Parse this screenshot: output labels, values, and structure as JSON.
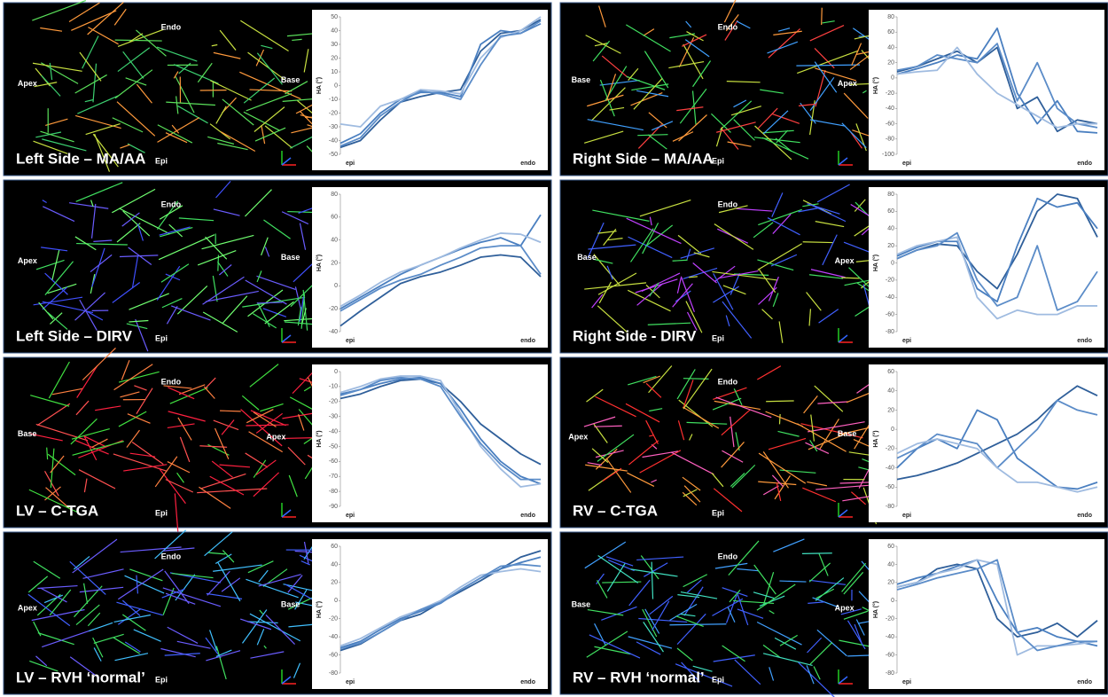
{
  "chart_data": [
    {
      "type": "line",
      "title": "Left Side – MA/AA",
      "image_labels": {
        "endo": "Endo",
        "apex": "Apex",
        "base": "Base",
        "epi": "Epi"
      },
      "ylabel": "HA (°)",
      "categories": [
        "epi",
        null,
        null,
        null,
        null,
        null,
        null,
        null,
        null,
        null,
        "endo"
      ],
      "ylim": [
        -50,
        50
      ],
      "yticks": [
        -50,
        -40,
        -30,
        -20,
        -10,
        0,
        10,
        20,
        30,
        40,
        50
      ],
      "series": [
        {
          "color": "#2f5f9a",
          "values": [
            -45,
            -40,
            -25,
            -12,
            -8,
            -5,
            -3,
            25,
            38,
            40,
            48
          ]
        },
        {
          "color": "#4a7fc0",
          "values": [
            -42,
            -35,
            -20,
            -10,
            -5,
            -5,
            -8,
            30,
            40,
            38,
            45
          ]
        },
        {
          "color": "#9fbbe0",
          "values": [
            -28,
            -30,
            -15,
            -10,
            -3,
            -4,
            -6,
            20,
            35,
            40,
            50
          ]
        },
        {
          "color": "#5b8cc8",
          "values": [
            -44,
            -38,
            -22,
            -12,
            -4,
            -6,
            -10,
            15,
            36,
            38,
            47
          ]
        }
      ]
    },
    {
      "type": "line",
      "title": "Right Side – MA/AA",
      "image_labels": {
        "endo": "Endo",
        "apex": "Apex",
        "base": "Base",
        "epi": "Epi"
      },
      "ylabel": "HA (°)",
      "categories": [
        "epi",
        null,
        null,
        null,
        null,
        null,
        null,
        null,
        null,
        null,
        "endo"
      ],
      "ylim": [
        -100,
        80
      ],
      "yticks": [
        -100,
        -80,
        -60,
        -40,
        -20,
        0,
        20,
        40,
        60,
        80
      ],
      "series": [
        {
          "color": "#2f5f9a",
          "values": [
            8,
            15,
            25,
            35,
            20,
            40,
            -40,
            -25,
            -70,
            -55,
            -60
          ]
        },
        {
          "color": "#4a7fc0",
          "values": [
            5,
            12,
            20,
            30,
            25,
            65,
            -20,
            -60,
            -30,
            -70,
            -72
          ]
        },
        {
          "color": "#5b8cc8",
          "values": [
            10,
            15,
            30,
            25,
            20,
            45,
            -30,
            20,
            -40,
            -60,
            -65
          ]
        },
        {
          "color": "#9fbbe0",
          "values": [
            5,
            8,
            10,
            40,
            5,
            -20,
            -35,
            -50,
            -65,
            -60,
            -60
          ]
        }
      ]
    },
    {
      "type": "line",
      "title": "Left Side – DIRV",
      "image_labels": {
        "endo": "Endo",
        "apex": "Apex",
        "base": "Base",
        "epi": "Epi"
      },
      "ylabel": "HA (°)",
      "categories": [
        "epi",
        null,
        null,
        null,
        null,
        null,
        null,
        null,
        null,
        null,
        "endo"
      ],
      "ylim": [
        -40,
        80
      ],
      "yticks": [
        -40,
        -20,
        0,
        20,
        40,
        60,
        80
      ],
      "series": [
        {
          "color": "#2f5f9a",
          "values": [
            -35,
            -22,
            -10,
            2,
            8,
            12,
            18,
            25,
            27,
            25,
            8
          ]
        },
        {
          "color": "#4a7fc0",
          "values": [
            -20,
            -10,
            0,
            10,
            18,
            25,
            32,
            38,
            42,
            35,
            62
          ]
        },
        {
          "color": "#9fbbe0",
          "values": [
            -18,
            -8,
            3,
            12,
            18,
            25,
            33,
            40,
            46,
            45,
            38
          ]
        },
        {
          "color": "#5b8cc8",
          "values": [
            -22,
            -12,
            -2,
            5,
            10,
            18,
            25,
            33,
            35,
            35,
            10
          ]
        }
      ]
    },
    {
      "type": "line",
      "title": "Right Side - DIRV",
      "image_labels": {
        "endo": "Endo",
        "apex": "Apex",
        "base": "Base",
        "epi": "Epi"
      },
      "ylabel": "HA (°)",
      "categories": [
        "epi",
        null,
        null,
        null,
        null,
        null,
        null,
        null,
        null,
        null,
        "endo"
      ],
      "ylim": [
        -80,
        80
      ],
      "yticks": [
        -80,
        -60,
        -40,
        -20,
        0,
        20,
        40,
        60,
        80
      ],
      "series": [
        {
          "color": "#2f5f9a",
          "values": [
            5,
            15,
            22,
            20,
            -10,
            -30,
            10,
            60,
            80,
            75,
            30
          ]
        },
        {
          "color": "#4a7fc0",
          "values": [
            8,
            18,
            25,
            25,
            -30,
            -45,
            20,
            75,
            65,
            70,
            40
          ]
        },
        {
          "color": "#9fbbe0",
          "values": [
            10,
            20,
            25,
            30,
            -40,
            -65,
            -55,
            -60,
            -60,
            -50,
            -50
          ]
        },
        {
          "color": "#5b8cc8",
          "values": [
            5,
            15,
            20,
            35,
            -20,
            -50,
            -40,
            20,
            -55,
            -45,
            -10
          ]
        }
      ]
    },
    {
      "type": "line",
      "title": "LV – C-TGA",
      "image_labels": {
        "endo": "Endo",
        "apex": "Apex",
        "base": "Base",
        "epi": "Epi"
      },
      "ylabel": "HA (°)",
      "categories": [
        "epi",
        null,
        null,
        null,
        null,
        null,
        null,
        null,
        null,
        null,
        "endo"
      ],
      "ylim": [
        -90,
        0
      ],
      "yticks": [
        -90,
        -80,
        -70,
        -60,
        -50,
        -40,
        -30,
        -20,
        -10,
        0
      ],
      "series": [
        {
          "color": "#2f5f9a",
          "values": [
            -18,
            -15,
            -10,
            -6,
            -5,
            -8,
            -20,
            -35,
            -45,
            -55,
            -62
          ]
        },
        {
          "color": "#4a7fc0",
          "values": [
            -15,
            -12,
            -8,
            -5,
            -4,
            -8,
            -25,
            -45,
            -60,
            -70,
            -75
          ]
        },
        {
          "color": "#9fbbe0",
          "values": [
            -14,
            -10,
            -5,
            -3,
            -3,
            -6,
            -28,
            -50,
            -65,
            -77,
            -75
          ]
        },
        {
          "color": "#5b8cc8",
          "values": [
            -16,
            -12,
            -6,
            -4,
            -5,
            -10,
            -30,
            -48,
            -62,
            -72,
            -72
          ]
        }
      ]
    },
    {
      "type": "line",
      "title": "RV – C-TGA",
      "image_labels": {
        "endo": "Endo",
        "apex": "Apex",
        "base": "Base",
        "epi": "Epi"
      },
      "ylabel": "HA (°)",
      "categories": [
        "epi",
        null,
        null,
        null,
        null,
        null,
        null,
        null,
        null,
        null,
        "endo"
      ],
      "ylim": [
        -80,
        60
      ],
      "yticks": [
        -80,
        -60,
        -40,
        -20,
        0,
        20,
        40,
        60
      ],
      "series": [
        {
          "color": "#2f5f9a",
          "values": [
            -52,
            -48,
            -42,
            -35,
            -25,
            -15,
            -5,
            10,
            30,
            45,
            35
          ]
        },
        {
          "color": "#4a7fc0",
          "values": [
            -40,
            -20,
            -10,
            -20,
            20,
            10,
            -30,
            -45,
            -60,
            -62,
            -55
          ]
        },
        {
          "color": "#5b8cc8",
          "values": [
            -30,
            -20,
            -5,
            -10,
            -15,
            -40,
            -20,
            0,
            30,
            20,
            15
          ]
        },
        {
          "color": "#9fbbe0",
          "values": [
            -25,
            -15,
            -10,
            -15,
            -20,
            -40,
            -55,
            -55,
            -60,
            -65,
            -60
          ]
        }
      ]
    },
    {
      "type": "line",
      "title": "LV – RVH ‘normal’",
      "image_labels": {
        "endo": "Endo",
        "apex": "Apex",
        "base": "Base",
        "epi": "Epi"
      },
      "ylabel": "HA (°)",
      "categories": [
        "epi",
        null,
        null,
        null,
        null,
        null,
        null,
        null,
        null,
        null,
        "endo"
      ],
      "ylim": [
        -80,
        60
      ],
      "yticks": [
        -80,
        -60,
        -40,
        -20,
        0,
        20,
        40,
        60
      ],
      "series": [
        {
          "color": "#2f5f9a",
          "values": [
            -55,
            -48,
            -35,
            -22,
            -15,
            -2,
            10,
            22,
            35,
            48,
            55
          ]
        },
        {
          "color": "#4a7fc0",
          "values": [
            -52,
            -45,
            -32,
            -20,
            -12,
            -3,
            12,
            25,
            35,
            42,
            48
          ]
        },
        {
          "color": "#9fbbe0",
          "values": [
            -50,
            -42,
            -30,
            -18,
            -10,
            0,
            15,
            28,
            32,
            35,
            32
          ]
        },
        {
          "color": "#5b8cc8",
          "values": [
            -53,
            -47,
            -35,
            -22,
            -10,
            -2,
            12,
            25,
            38,
            40,
            38
          ]
        }
      ]
    },
    {
      "type": "line",
      "title": "RV – RVH ‘normal’",
      "image_labels": {
        "endo": "Endo",
        "apex": "Apex",
        "base": "Base",
        "epi": "Epi"
      },
      "ylabel": "HA (°)",
      "categories": [
        "epi",
        null,
        null,
        null,
        null,
        null,
        null,
        null,
        null,
        null,
        "endo"
      ],
      "ylim": [
        -80,
        60
      ],
      "yticks": [
        -80,
        -60,
        -40,
        -20,
        0,
        20,
        40,
        60
      ],
      "series": [
        {
          "color": "#2f5f9a",
          "values": [
            15,
            20,
            35,
            40,
            35,
            -20,
            -40,
            -35,
            -25,
            -40,
            -22
          ]
        },
        {
          "color": "#4a7fc0",
          "values": [
            18,
            25,
            30,
            38,
            45,
            0,
            -35,
            -30,
            -40,
            -45,
            -50
          ]
        },
        {
          "color": "#9fbbe0",
          "values": [
            15,
            20,
            30,
            35,
            45,
            40,
            -60,
            -50,
            -50,
            -48,
            -45
          ]
        },
        {
          "color": "#5b8cc8",
          "values": [
            12,
            18,
            25,
            30,
            35,
            45,
            -35,
            -55,
            -50,
            -45,
            -45
          ]
        }
      ]
    }
  ]
}
